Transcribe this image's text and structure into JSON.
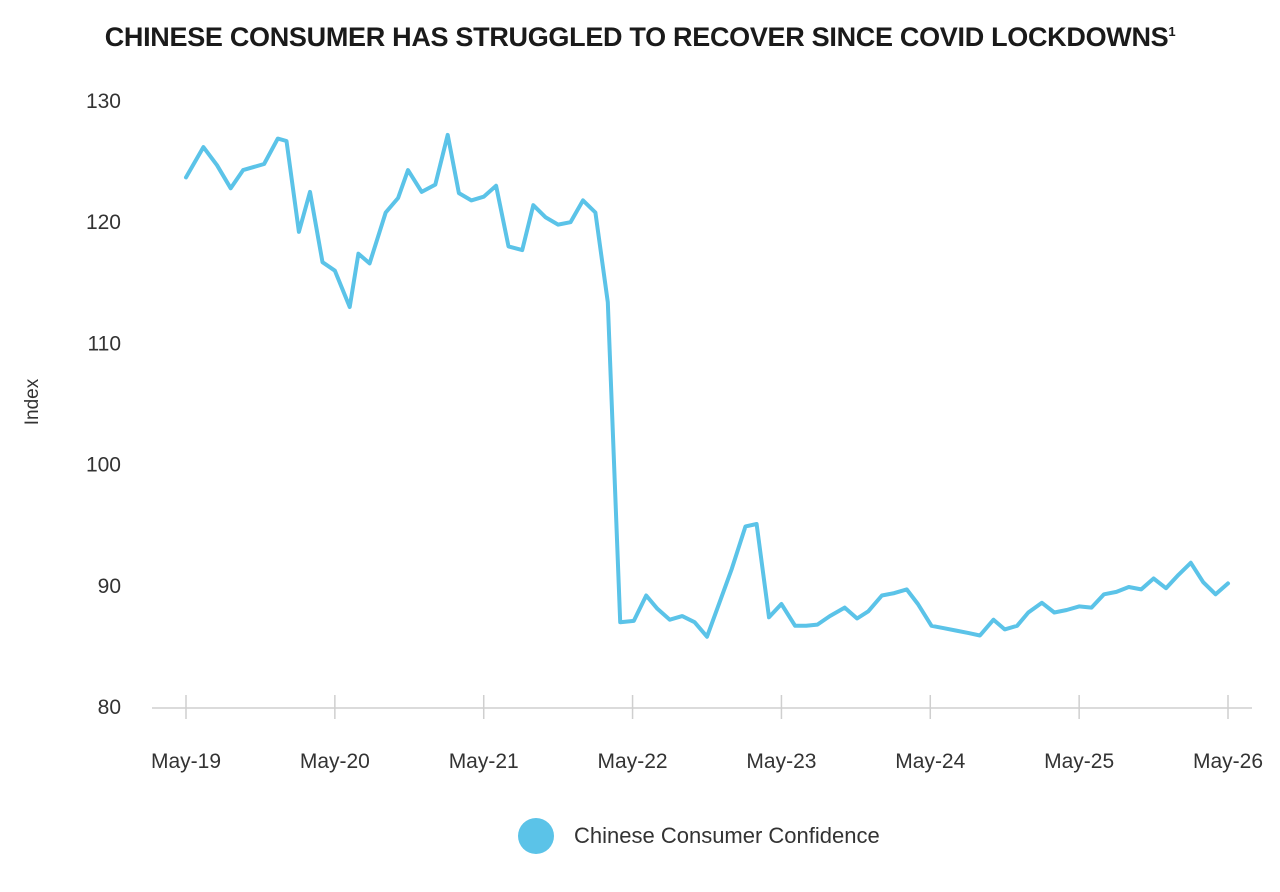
{
  "chart_data": {
    "type": "line",
    "title": "CHINESE CONSUMER HAS STRUGGLED TO RECOVER SINCE COVID LOCKDOWNS",
    "title_footnote": "1",
    "xlabel": "",
    "ylabel": "Index",
    "ylim": [
      80,
      130
    ],
    "yticks": [
      80,
      90,
      100,
      110,
      120,
      130
    ],
    "xticks": [
      "May-19",
      "May-20",
      "May-21",
      "May-22",
      "May-23",
      "May-24",
      "May-25",
      "May-26"
    ],
    "grid": false,
    "legend_position": "bottom",
    "series": [
      {
        "name": "Chinese Consumer Confidence",
        "color": "#5BC3E8",
        "x": [
          0.0,
          1.4,
          2.5,
          3.6,
          4.6,
          6.3,
          7.4,
          8.1,
          9.1,
          10.0,
          11.0,
          12.0,
          13.2,
          13.9,
          14.8,
          16.1,
          17.1,
          17.9,
          19.0,
          20.1,
          21.1,
          22.0,
          23.0,
          24.0,
          25.0,
          26.0,
          27.1,
          28.0,
          29.0,
          30.0,
          31.0,
          32.0,
          33.0,
          34.0,
          35.0,
          36.1,
          37.1,
          38.0,
          39.0,
          40.0,
          41.0,
          42.0,
          43.0,
          44.0,
          45.1,
          46.0,
          47.0,
          48.0,
          49.1,
          50.0,
          50.9,
          51.9,
          53.1,
          54.1,
          55.0,
          56.1,
          57.1,
          58.1,
          59.0,
          60.1,
          61.1,
          62.1,
          63.1,
          64.0,
          65.1,
          66.0,
          67.0,
          67.9,
          69.0,
          70.0,
          71.0,
          72.0,
          73.0,
          74.0,
          75.0,
          76.0,
          77.0,
          78.0,
          79.0,
          80.0,
          81.0,
          82.0,
          83.0,
          84.0
        ],
        "y": [
          123.7,
          126.2,
          124.7,
          122.8,
          124.3,
          124.8,
          126.9,
          126.7,
          119.2,
          122.5,
          116.7,
          116.0,
          113.0,
          117.4,
          116.6,
          120.8,
          122.0,
          124.3,
          122.5,
          123.1,
          127.2,
          122.4,
          121.8,
          122.1,
          123.0,
          118.0,
          117.7,
          121.4,
          120.4,
          119.8,
          120.0,
          121.8,
          120.8,
          113.4,
          87.0,
          87.1,
          89.2,
          88.1,
          87.2,
          87.5,
          87.0,
          85.8,
          88.6,
          91.4,
          94.9,
          95.1,
          87.4,
          88.5,
          86.7,
          86.7,
          86.8,
          87.5,
          88.2,
          87.3,
          87.9,
          89.2,
          89.4,
          89.7,
          88.5,
          86.7,
          86.5,
          86.3,
          86.1,
          85.9,
          87.2,
          86.4,
          86.7,
          87.8,
          88.6,
          87.8,
          88.0,
          88.3,
          88.2,
          89.3,
          89.5,
          89.9,
          89.7,
          90.6,
          89.8,
          90.9,
          91.9,
          90.3,
          89.3,
          90.2
        ]
      }
    ]
  }
}
